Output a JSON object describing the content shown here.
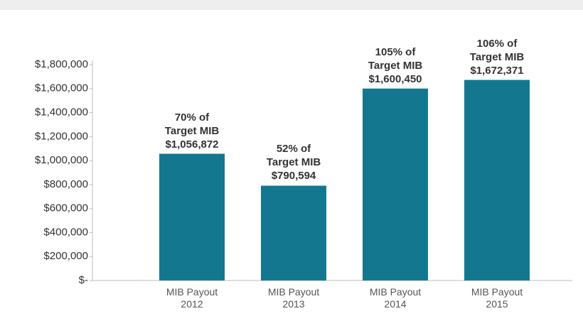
{
  "chart_data": {
    "type": "bar",
    "categories": [
      "MIB Payout 2012",
      "MIB Payout 2013",
      "MIB Payout 2014",
      "MIB Payout 2015"
    ],
    "values": [
      1056872,
      790594,
      1600450,
      1672371
    ],
    "value_labels": [
      "$1,056,872",
      "$790,594",
      "$1,600,450",
      "$1,672,371"
    ],
    "annotations": [
      "70% of Target MIB",
      "52% of Target MIB",
      "105% of Target MIB",
      "106% of Target MIB"
    ],
    "color": "#13788f",
    "ylim": [
      0,
      1800000
    ],
    "yticks": [
      {
        "value": 0,
        "label": "$-"
      },
      {
        "value": 200000,
        "label": "$200,000"
      },
      {
        "value": 400000,
        "label": "$400,000"
      },
      {
        "value": 600000,
        "label": "$600,000"
      },
      {
        "value": 800000,
        "label": "$800,000"
      },
      {
        "value": 1000000,
        "label": "$1,000,000"
      },
      {
        "value": 1200000,
        "label": "$1,200,000"
      },
      {
        "value": 1400000,
        "label": "$1,400,000"
      },
      {
        "value": 1600000,
        "label": "$1,600,000"
      },
      {
        "value": 1800000,
        "label": "$1,800,000"
      }
    ],
    "grid": false
  }
}
